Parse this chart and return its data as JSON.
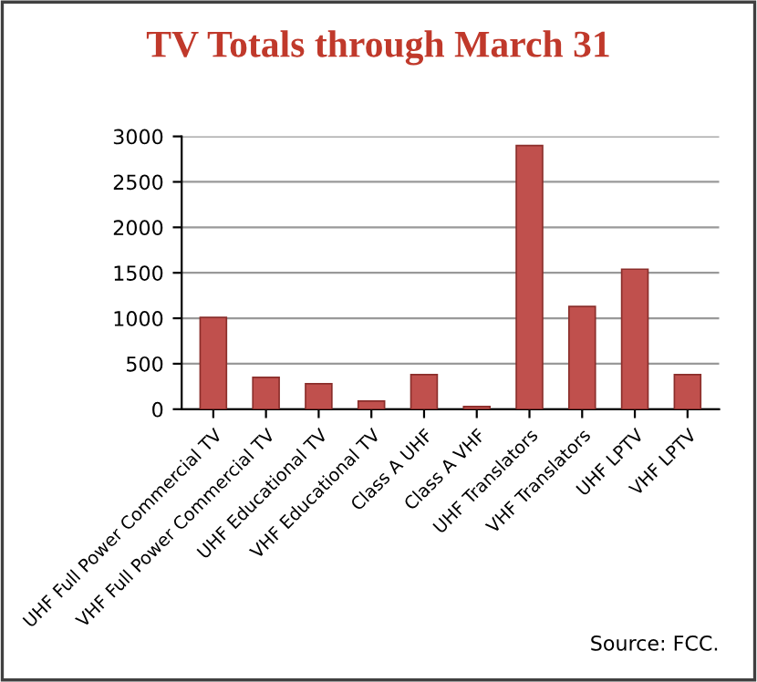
{
  "chart_data": {
    "type": "bar",
    "title": "TV Totals through March 31",
    "categories": [
      "UHF Full Power Commercial TV",
      "VHF Full Power Commercial TV",
      "UHF Educational TV",
      "VHF Educational TV",
      "Class A UHF",
      "Class A VHF",
      "UHF Translators",
      "VHF Translators",
      "UHF LPTV",
      "VHF LPTV"
    ],
    "values": [
      1010,
      350,
      280,
      90,
      380,
      30,
      2900,
      1130,
      1540,
      380
    ],
    "color": "#c0504d",
    "ylim": [
      0,
      3000
    ],
    "yticks": [
      0,
      500,
      1000,
      1500,
      2000,
      2500,
      3000
    ],
    "grid": "y",
    "annotations": [
      "Source: FCC."
    ]
  }
}
